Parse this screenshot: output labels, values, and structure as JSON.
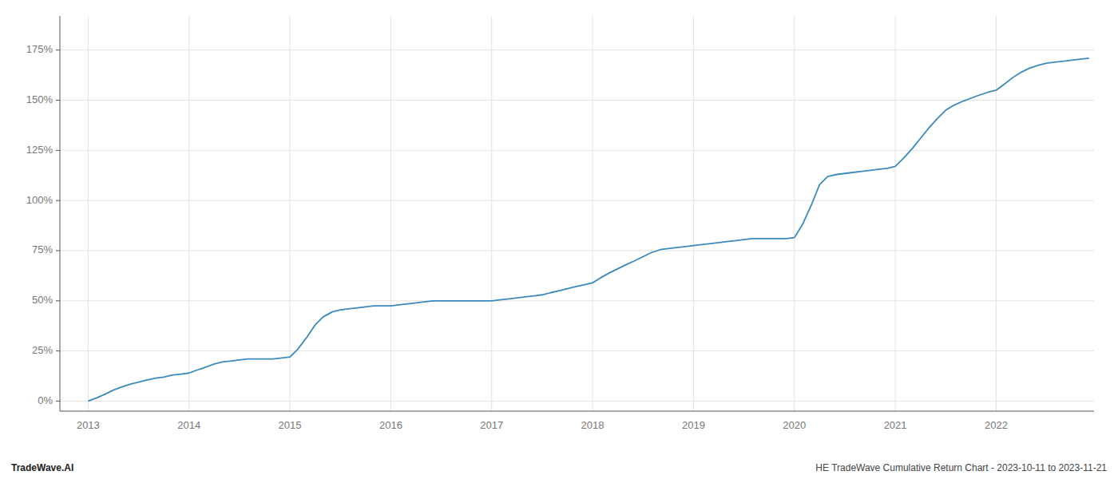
{
  "chart_data": {
    "type": "line",
    "title": "HE TradeWave Cumulative Return Chart - 2023-10-11 to 2023-11-21",
    "annotations": [
      "TradeWave.AI"
    ],
    "color": "#3a8abf",
    "grid": true,
    "x": [
      2013.0,
      2013.08,
      2013.17,
      2013.25,
      2013.33,
      2013.42,
      2013.5,
      2013.58,
      2013.67,
      2013.75,
      2013.83,
      2013.92,
      2014.0,
      2014.08,
      2014.17,
      2014.25,
      2014.33,
      2014.42,
      2014.5,
      2014.58,
      2014.67,
      2014.75,
      2014.83,
      2014.92,
      2015.0,
      2015.08,
      2015.17,
      2015.25,
      2015.33,
      2015.42,
      2015.5,
      2015.58,
      2015.67,
      2015.75,
      2015.83,
      2015.92,
      2016.0,
      2016.08,
      2016.17,
      2016.25,
      2016.33,
      2016.42,
      2016.5,
      2016.58,
      2016.67,
      2016.75,
      2016.83,
      2016.92,
      2017.0,
      2017.08,
      2017.17,
      2017.25,
      2017.33,
      2017.42,
      2017.5,
      2017.58,
      2017.67,
      2017.75,
      2017.83,
      2017.92,
      2018.0,
      2018.08,
      2018.17,
      2018.25,
      2018.33,
      2018.42,
      2018.5,
      2018.58,
      2018.67,
      2018.75,
      2018.83,
      2018.92,
      2019.0,
      2019.08,
      2019.17,
      2019.25,
      2019.33,
      2019.42,
      2019.5,
      2019.58,
      2019.67,
      2019.75,
      2019.83,
      2019.92,
      2020.0,
      2020.08,
      2020.17,
      2020.25,
      2020.33,
      2020.42,
      2020.5,
      2020.58,
      2020.67,
      2020.75,
      2020.83,
      2020.92,
      2021.0,
      2021.08,
      2021.17,
      2021.25,
      2021.33,
      2021.42,
      2021.5,
      2021.58,
      2021.67,
      2021.75,
      2021.83,
      2021.92,
      2022.0,
      2022.08,
      2022.17,
      2022.25,
      2022.33,
      2022.42,
      2022.5,
      2022.58,
      2022.67,
      2022.75,
      2022.83,
      2022.92
    ],
    "values": [
      0.0,
      1.5,
      3.5,
      5.5,
      7.0,
      8.5,
      9.5,
      10.5,
      11.5,
      12.0,
      13.0,
      13.5,
      14.0,
      15.5,
      17.0,
      18.5,
      19.5,
      20.0,
      20.5,
      21.0,
      21.0,
      21.0,
      21.0,
      21.5,
      22.0,
      26.0,
      32.0,
      38.0,
      42.0,
      44.5,
      45.5,
      46.0,
      46.5,
      47.0,
      47.5,
      47.5,
      47.5,
      48.0,
      48.5,
      49.0,
      49.5,
      50.0,
      50.0,
      50.0,
      50.0,
      50.0,
      50.0,
      50.0,
      50.0,
      50.5,
      51.0,
      51.5,
      52.0,
      52.5,
      53.0,
      54.0,
      55.0,
      56.0,
      57.0,
      58.0,
      59.0,
      61.5,
      64.0,
      66.0,
      68.0,
      70.0,
      72.0,
      74.0,
      75.5,
      76.0,
      76.5,
      77.0,
      77.5,
      78.0,
      78.5,
      79.0,
      79.5,
      80.0,
      80.5,
      81.0,
      81.0,
      81.0,
      81.0,
      81.0,
      81.5,
      88.0,
      98.0,
      108.0,
      112.0,
      113.0,
      113.5,
      114.0,
      114.5,
      115.0,
      115.5,
      116.0,
      117.0,
      121.0,
      126.0,
      131.0,
      136.0,
      141.0,
      145.0,
      147.5,
      149.5,
      151.0,
      152.5,
      154.0,
      155.0,
      158.0,
      161.5,
      164.0,
      166.0,
      167.5,
      168.5,
      169.0,
      169.5,
      170.0,
      170.5,
      171.0
    ],
    "xlim": [
      2012.72,
      2022.97
    ],
    "xticks": [
      2013,
      2014,
      2015,
      2016,
      2017,
      2018,
      2019,
      2020,
      2021,
      2022
    ],
    "ylim": [
      -5,
      192
    ],
    "yticks": [
      {
        "value": 0,
        "label": "0%"
      },
      {
        "value": 25,
        "label": "25%"
      },
      {
        "value": 50,
        "label": "50%"
      },
      {
        "value": 75,
        "label": "75%"
      },
      {
        "value": 100,
        "label": "100%"
      },
      {
        "value": 125,
        "label": "125%"
      },
      {
        "value": 150,
        "label": "150%"
      },
      {
        "value": 175,
        "label": "175%"
      }
    ]
  }
}
